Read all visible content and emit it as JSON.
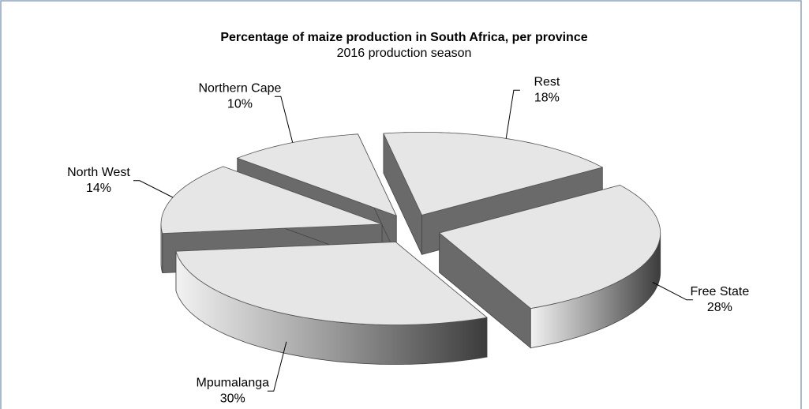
{
  "chart_data": {
    "type": "pie",
    "title": "Percentage of maize production in South Africa, per province",
    "subtitle": "2016 production season",
    "categories": [
      "Rest",
      "Free State",
      "Mpumalanga",
      "North West",
      "Northern Cape"
    ],
    "values": [
      18,
      28,
      30,
      14,
      10
    ],
    "value_labels": [
      "18%",
      "28%",
      "30%",
      "14%",
      "10%"
    ],
    "colors": [
      "#e6e6e6",
      "#e6e6e6",
      "#e6e6e6",
      "#e6e6e6",
      "#e6e6e6"
    ]
  }
}
